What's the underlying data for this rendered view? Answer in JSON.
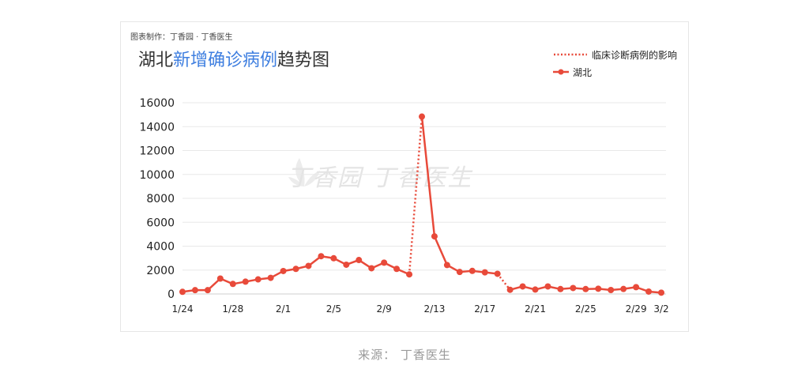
{
  "credit": "图表制作：丁香园 · 丁香医生",
  "title": {
    "prefix": "湖北",
    "highlight": "新增确诊病例",
    "suffix": "趋势图"
  },
  "legend": {
    "clinical": "临床诊断病例的影响",
    "hubei": "湖北"
  },
  "watermark": "丁香园  丁香医生",
  "source": "来源：  丁香医生",
  "colors": {
    "series": "#e84a3a",
    "grid": "#e8e8e8",
    "title_highlight": "#3f7fe0"
  },
  "chart_data": {
    "type": "line",
    "y_ticks": [
      "0",
      "2000",
      "4000",
      "6000",
      "8000",
      "10000",
      "12000",
      "14000",
      "16000"
    ],
    "ylim": [
      0,
      16000
    ],
    "x_ticks": [
      {
        "index": 0,
        "label": "1/24"
      },
      {
        "index": 4,
        "label": "1/28"
      },
      {
        "index": 8,
        "label": "2/1"
      },
      {
        "index": 12,
        "label": "2/5"
      },
      {
        "index": 16,
        "label": "2/9"
      },
      {
        "index": 20,
        "label": "2/13"
      },
      {
        "index": 24,
        "label": "2/17"
      },
      {
        "index": 28,
        "label": "2/21"
      },
      {
        "index": 32,
        "label": "2/25"
      },
      {
        "index": 36,
        "label": "2/29"
      },
      {
        "index": 38,
        "label": "3/2"
      }
    ],
    "x": [
      "1/24",
      "1/25",
      "1/26",
      "1/27",
      "1/28",
      "1/29",
      "1/30",
      "1/31",
      "2/1",
      "2/2",
      "2/3",
      "2/4",
      "2/5",
      "2/6",
      "2/7",
      "2/8",
      "2/9",
      "2/10",
      "2/11",
      "2/12",
      "2/13",
      "2/14",
      "2/15",
      "2/16",
      "2/17",
      "2/18",
      "2/19",
      "2/20",
      "2/21",
      "2/22",
      "2/23",
      "2/24",
      "2/25",
      "2/26",
      "2/27",
      "2/28",
      "2/29",
      "3/1",
      "3/2"
    ],
    "series": [
      {
        "name": "湖北",
        "values": [
          180,
          320,
          320,
          1290,
          840,
          1030,
          1220,
          1350,
          1920,
          2100,
          2350,
          3160,
          2990,
          2450,
          2840,
          2150,
          2620,
          2100,
          1640,
          14840,
          4820,
          2420,
          1840,
          1930,
          1810,
          1690,
          350,
          630,
          370,
          630,
          410,
          500,
          410,
          440,
          330,
          420,
          570,
          200,
          110
        ]
      }
    ],
    "dotted_segments": [
      [
        18,
        19
      ],
      [
        25,
        26
      ]
    ]
  }
}
